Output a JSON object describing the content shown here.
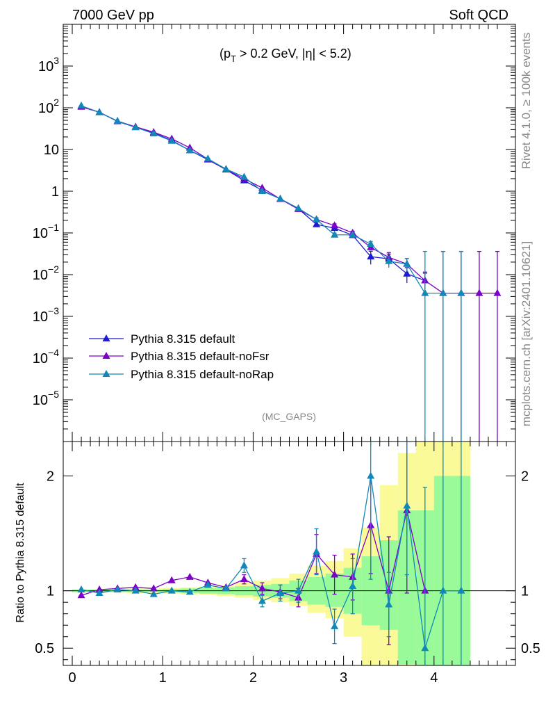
{
  "header": {
    "left": "7000 GeV pp",
    "right": "Soft QCD"
  },
  "side_labels": {
    "rivet": "Rivet 4.1.0, ≥ 100k events",
    "mcplots": "mcplots.cern.ch [arXiv:2401.10621]"
  },
  "chart_data": [
    {
      "type": "line",
      "panel": "main",
      "yscale": "log",
      "annotation": {
        "pt": "(p",
        "pt_sub": "T",
        "cut": " > 0.2 GeV, |η| < 5.2)"
      },
      "watermark": "(MC_GAPS)",
      "xlim": [
        -0.1,
        4.9
      ],
      "ylim": [
        1e-06,
        10000
      ],
      "ytick_labels": [
        {
          "value": 1000,
          "base": "10",
          "exp": "3"
        },
        {
          "value": 100,
          "base": "10",
          "exp": "2"
        },
        {
          "value": 10,
          "base": "10",
          "exp": ""
        },
        {
          "value": 1,
          "base": "1",
          "exp": ""
        },
        {
          "value": 0.1,
          "base": "10",
          "exp": "−1"
        },
        {
          "value": 0.01,
          "base": "10",
          "exp": "−2"
        },
        {
          "value": 0.001,
          "base": "10",
          "exp": "−3"
        },
        {
          "value": 0.0001,
          "base": "10",
          "exp": "−4"
        },
        {
          "value": 1e-05,
          "base": "10",
          "exp": "−5"
        }
      ],
      "series": [
        {
          "name": "Pythia 8.315 default",
          "color": "#1c1cd0",
          "x": [
            0.1,
            0.3,
            0.5,
            0.7,
            0.9,
            1.1,
            1.3,
            1.5,
            1.7,
            1.9,
            2.1,
            2.3,
            2.5,
            2.7,
            2.9,
            3.1,
            3.3,
            3.5,
            3.7,
            3.9
          ],
          "y": [
            110,
            78,
            47,
            34,
            25,
            16.5,
            9.5,
            5.7,
            3.3,
            1.8,
            1.05,
            0.65,
            0.38,
            0.16,
            0.13,
            0.088,
            0.027,
            0.024,
            0.0105,
            0.0072
          ],
          "err": [
            0,
            0,
            0,
            0,
            0,
            0,
            0,
            0,
            0,
            0,
            0,
            0,
            0,
            0,
            0,
            0,
            0.35,
            0.3,
            0.4,
            0.6
          ]
        },
        {
          "name": "Pythia 8.315 default-noFsr",
          "color": "#7b00c8",
          "x": [
            0.1,
            0.3,
            0.5,
            0.7,
            0.9,
            1.1,
            1.3,
            1.5,
            1.7,
            1.9,
            2.1,
            2.3,
            2.5,
            2.7,
            2.9,
            3.1,
            3.3,
            3.5,
            3.7,
            3.9,
            4.1,
            4.3,
            4.5,
            4.7
          ],
          "y": [
            105,
            78,
            48,
            35,
            26,
            18,
            11,
            5.9,
            3.3,
            2.0,
            1.2,
            0.65,
            0.37,
            0.21,
            0.15,
            0.1,
            0.045,
            0.026,
            0.018,
            0.0072,
            0.0036,
            0.0036,
            0.0036,
            0.0036
          ],
          "err": [
            0,
            0,
            0,
            0,
            0,
            0,
            0,
            0,
            0,
            0,
            0,
            0,
            0,
            0.1,
            0.1,
            0.1,
            0.15,
            0.3,
            0.35,
            0.5,
            9,
            9,
            9,
            9
          ]
        },
        {
          "name": "Pythia 8.315 default-noRap",
          "color": "#1188b8",
          "x": [
            0.1,
            0.3,
            0.5,
            0.7,
            0.9,
            1.1,
            1.3,
            1.5,
            1.7,
            1.9,
            2.1,
            2.3,
            2.5,
            2.7,
            2.9,
            3.1,
            3.3,
            3.5,
            3.7,
            3.9,
            4.1,
            4.3
          ],
          "y": [
            112,
            77,
            48,
            34,
            24,
            16,
            9.5,
            6.0,
            3.4,
            2.2,
            1.0,
            0.66,
            0.39,
            0.21,
            0.09,
            0.09,
            0.054,
            0.021,
            0.018,
            0.0036,
            0.0036,
            0.0036
          ],
          "err": [
            0,
            0,
            0,
            0,
            0,
            0,
            0,
            0,
            0,
            0,
            0,
            0,
            0,
            0.1,
            0.1,
            0.1,
            0.15,
            0.3,
            0.35,
            9,
            9,
            9
          ]
        }
      ]
    },
    {
      "type": "line",
      "panel": "ratio",
      "ylabel": "Ratio to Pythia 8.315 default",
      "xlim": [
        -0.1,
        4.9
      ],
      "ylim": [
        0.35,
        2.3
      ],
      "yticks": [
        0.5,
        1,
        2
      ],
      "ytick_labels": [
        "0.5",
        "1",
        "2"
      ],
      "xticks": [
        0,
        1,
        2,
        3,
        4
      ],
      "xtick_labels": [
        "0",
        "1",
        "2",
        "3",
        "4"
      ],
      "bands": {
        "green_color": "#98fa98",
        "yellow_color": "#fafa98",
        "bins": [
          {
            "x0": 0.0,
            "x1": 0.2,
            "g": [
              0.99,
              1.01
            ],
            "y": [
              0.985,
              1.015
            ]
          },
          {
            "x0": 0.2,
            "x1": 0.4,
            "g": [
              0.99,
              1.01
            ],
            "y": [
              0.985,
              1.015
            ]
          },
          {
            "x0": 0.4,
            "x1": 0.6,
            "g": [
              0.99,
              1.01
            ],
            "y": [
              0.985,
              1.015
            ]
          },
          {
            "x0": 0.6,
            "x1": 0.8,
            "g": [
              0.99,
              1.01
            ],
            "y": [
              0.98,
              1.02
            ]
          },
          {
            "x0": 0.8,
            "x1": 1.0,
            "g": [
              0.99,
              1.01
            ],
            "y": [
              0.98,
              1.02
            ]
          },
          {
            "x0": 1.0,
            "x1": 1.2,
            "g": [
              0.985,
              1.015
            ],
            "y": [
              0.975,
              1.025
            ]
          },
          {
            "x0": 1.2,
            "x1": 1.4,
            "g": [
              0.98,
              1.02
            ],
            "y": [
              0.97,
              1.03
            ]
          },
          {
            "x0": 1.4,
            "x1": 1.6,
            "g": [
              0.975,
              1.025
            ],
            "y": [
              0.965,
              1.035
            ]
          },
          {
            "x0": 1.6,
            "x1": 1.8,
            "g": [
              0.97,
              1.03
            ],
            "y": [
              0.955,
              1.045
            ]
          },
          {
            "x0": 1.8,
            "x1": 2.0,
            "g": [
              0.96,
              1.04
            ],
            "y": [
              0.94,
              1.07
            ]
          },
          {
            "x0": 2.0,
            "x1": 2.2,
            "g": [
              0.95,
              1.05
            ],
            "y": [
              0.92,
              1.09
            ]
          },
          {
            "x0": 2.2,
            "x1": 2.4,
            "g": [
              0.94,
              1.06
            ],
            "y": [
              0.9,
              1.11
            ]
          },
          {
            "x0": 2.4,
            "x1": 2.6,
            "g": [
              0.91,
              1.09
            ],
            "y": [
              0.87,
              1.15
            ]
          },
          {
            "x0": 2.6,
            "x1": 2.8,
            "g": [
              0.88,
              1.12
            ],
            "y": [
              0.81,
              1.22
            ]
          },
          {
            "x0": 2.8,
            "x1": 3.0,
            "g": [
              0.86,
              1.15
            ],
            "y": [
              0.76,
              1.26
            ]
          },
          {
            "x0": 3.0,
            "x1": 3.2,
            "g": [
              0.8,
              1.2
            ],
            "y": [
              0.6,
              1.37
            ]
          },
          {
            "x0": 3.2,
            "x1": 3.4,
            "g": [
              0.7,
              1.3
            ],
            "y": [
              0.3,
              1.55
            ]
          },
          {
            "x0": 3.4,
            "x1": 3.6,
            "g": [
              0.66,
              1.44
            ],
            "y": [
              0.3,
              1.92
            ]
          },
          {
            "x0": 3.6,
            "x1": 3.8,
            "g": [
              0.36,
              1.7
            ],
            "y": [
              0.3,
              2.2
            ]
          },
          {
            "x0": 3.8,
            "x1": 4.0,
            "g": [
              0.3,
              1.7
            ],
            "y": [
              0.3,
              2.45
            ]
          },
          {
            "x0": 4.0,
            "x1": 4.2,
            "g": [
              0.3,
              2.0
            ],
            "y": [
              0.3,
              2.45
            ]
          },
          {
            "x0": 4.2,
            "x1": 4.4,
            "g": [
              0.3,
              2.0
            ],
            "y": [
              0.3,
              2.45
            ]
          }
        ]
      },
      "series": [
        {
          "name": "Pythia 8.315 default-noFsr",
          "color": "#7b00c8",
          "x": [
            0.1,
            0.3,
            0.5,
            0.7,
            0.9,
            1.1,
            1.3,
            1.5,
            1.7,
            1.9,
            2.1,
            2.3,
            2.5,
            2.7,
            2.9,
            3.1,
            3.3,
            3.5,
            3.7,
            3.9
          ],
          "y": [
            0.96,
            1.01,
            1.02,
            1.03,
            1.02,
            1.09,
            1.12,
            1.07,
            1.03,
            1.1,
            1.02,
            0.99,
            0.94,
            1.32,
            1.14,
            1.12,
            1.57,
            1.0,
            1.7,
            1.0
          ],
          "err": [
            0,
            0,
            0,
            0,
            0,
            0,
            0,
            0,
            0,
            0.04,
            0.05,
            0.06,
            0.08,
            0.17,
            0.17,
            0.2,
            0.42,
            0.47,
            0.72,
            0
          ]
        },
        {
          "name": "Pythia 8.315 default-noRap",
          "color": "#1188b8",
          "x": [
            0.1,
            0.3,
            0.5,
            0.7,
            0.9,
            1.1,
            1.3,
            1.5,
            1.7,
            1.9,
            2.1,
            2.3,
            2.5,
            2.7,
            2.9,
            3.1,
            3.3,
            3.5,
            3.7,
            3.9,
            4.1,
            4.3
          ],
          "y": [
            1.01,
            0.98,
            1.01,
            1.0,
            0.97,
            1.0,
            0.99,
            1.05,
            1.02,
            1.22,
            0.91,
            0.98,
            1.0,
            1.34,
            0.69,
            1.04,
            2.0,
            0.88,
            1.74,
            0.5,
            1.0,
            1.0
          ],
          "err": [
            0,
            0,
            0,
            0,
            0,
            0,
            0,
            0,
            0,
            0.06,
            0.05,
            0.07,
            0.1,
            0.2,
            0.15,
            0.24,
            0.9,
            0.28,
            0.6,
            1.4,
            1.5,
            1.5
          ]
        }
      ]
    }
  ]
}
